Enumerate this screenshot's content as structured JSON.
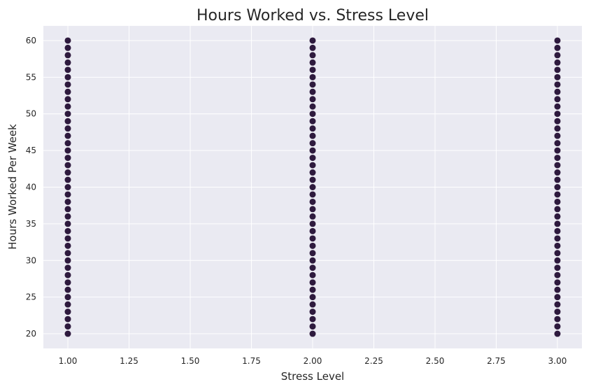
{
  "chart_data": {
    "type": "scatter",
    "title": "Hours Worked vs. Stress Level",
    "xlabel": "Stress Level",
    "ylabel": "Hours Worked Per Week",
    "xlim": [
      0.9,
      3.1
    ],
    "ylim": [
      18,
      62
    ],
    "xticks": [
      1.0,
      1.25,
      1.5,
      1.75,
      2.0,
      2.25,
      2.5,
      2.75,
      3.0
    ],
    "xtick_labels": [
      "1.00",
      "1.25",
      "1.50",
      "1.75",
      "2.00",
      "2.25",
      "2.50",
      "2.75",
      "3.00"
    ],
    "yticks": [
      20,
      25,
      30,
      35,
      40,
      45,
      50,
      55,
      60
    ],
    "yticks_labels": [
      "20",
      "25",
      "30",
      "35",
      "40",
      "45",
      "50",
      "55",
      "60"
    ],
    "grid": true,
    "style": {
      "background": "#eaeaf2",
      "grid_color": "#ffffff",
      "marker_color": "#2e1a3e"
    },
    "series": [
      {
        "x": [
          1,
          1,
          1,
          1,
          1,
          1,
          1,
          1,
          1,
          1,
          1,
          1,
          1,
          1,
          1,
          1,
          1,
          1,
          1,
          1,
          1,
          1,
          1,
          1,
          1,
          1,
          1,
          1,
          1,
          1,
          1,
          1,
          1,
          1,
          1,
          1,
          1,
          1,
          1,
          1,
          1,
          2,
          2,
          2,
          2,
          2,
          2,
          2,
          2,
          2,
          2,
          2,
          2,
          2,
          2,
          2,
          2,
          2,
          2,
          2,
          2,
          2,
          2,
          2,
          2,
          2,
          2,
          2,
          2,
          2,
          2,
          2,
          2,
          2,
          2,
          2,
          2,
          2,
          2,
          2,
          2,
          2,
          3,
          3,
          3,
          3,
          3,
          3,
          3,
          3,
          3,
          3,
          3,
          3,
          3,
          3,
          3,
          3,
          3,
          3,
          3,
          3,
          3,
          3,
          3,
          3,
          3,
          3,
          3,
          3,
          3,
          3,
          3,
          3,
          3,
          3,
          3,
          3,
          3,
          3,
          3,
          3,
          3
        ],
        "y": [
          20,
          21,
          22,
          23,
          24,
          25,
          26,
          27,
          28,
          29,
          30,
          31,
          32,
          33,
          34,
          35,
          36,
          37,
          38,
          39,
          40,
          41,
          42,
          43,
          44,
          45,
          46,
          47,
          48,
          49,
          50,
          51,
          52,
          53,
          54,
          55,
          56,
          57,
          58,
          59,
          60,
          20,
          21,
          22,
          23,
          24,
          25,
          26,
          27,
          28,
          29,
          30,
          31,
          32,
          33,
          34,
          35,
          36,
          37,
          38,
          39,
          40,
          41,
          42,
          43,
          44,
          45,
          46,
          47,
          48,
          49,
          50,
          51,
          52,
          53,
          54,
          55,
          56,
          57,
          58,
          59,
          60,
          20,
          21,
          22,
          23,
          24,
          25,
          26,
          27,
          28,
          29,
          30,
          31,
          32,
          33,
          34,
          35,
          36,
          37,
          38,
          39,
          40,
          41,
          42,
          43,
          44,
          45,
          46,
          47,
          48,
          49,
          50,
          51,
          52,
          53,
          54,
          55,
          56,
          57,
          58,
          59,
          60
        ]
      }
    ]
  }
}
